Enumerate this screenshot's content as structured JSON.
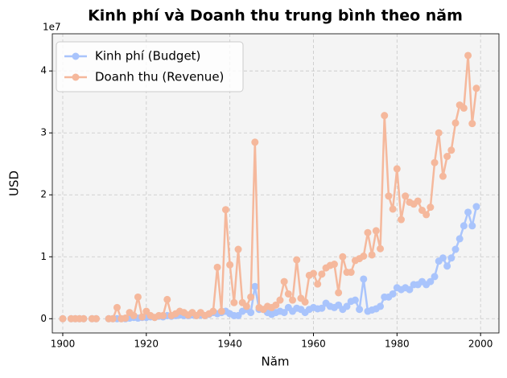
{
  "chart_data": {
    "type": "line",
    "title": "Kinh phí và Doanh thu trung bình theo năm",
    "x_label": "Năm",
    "y_label": "USD",
    "y_offset_label": "1e7",
    "x": [
      1900,
      1901,
      1902,
      1903,
      1904,
      1905,
      1906,
      1907,
      1908,
      1909,
      1910,
      1911,
      1912,
      1913,
      1914,
      1915,
      1916,
      1917,
      1918,
      1919,
      1920,
      1921,
      1922,
      1923,
      1924,
      1925,
      1926,
      1927,
      1928,
      1929,
      1930,
      1931,
      1932,
      1933,
      1934,
      1935,
      1936,
      1937,
      1938,
      1939,
      1940,
      1941,
      1942,
      1943,
      1944,
      1945,
      1946,
      1947,
      1948,
      1949,
      1950,
      1951,
      1952,
      1953,
      1954,
      1955,
      1956,
      1957,
      1958,
      1959,
      1960,
      1961,
      1962,
      1963,
      1964,
      1965,
      1966,
      1967,
      1968,
      1969,
      1970,
      1971,
      1972,
      1973,
      1974,
      1975,
      1976,
      1977,
      1978,
      1979,
      1980,
      1981,
      1982,
      1983,
      1984,
      1985,
      1986,
      1987,
      1988,
      1989,
      1990,
      1991,
      1992,
      1993,
      1994,
      1995,
      1996,
      1997,
      1998,
      1999
    ],
    "series": [
      {
        "name": "Kinh phí (Budget)",
        "color": "#a9c4fc",
        "values": [
          0,
          null,
          0,
          0,
          0,
          0,
          null,
          0,
          0,
          null,
          null,
          0,
          0,
          0,
          0,
          0,
          0.01,
          0.02,
          0.01,
          0.02,
          0.02,
          0.03,
          0.02,
          0.04,
          0.03,
          0.05,
          0.04,
          0.05,
          0.06,
          0.05,
          0.05,
          0.06,
          0.05,
          0.06,
          0.05,
          0.07,
          0.1,
          0.08,
          0.1,
          0.12,
          0.08,
          0.05,
          0.05,
          0.12,
          0.15,
          0.1,
          0.52,
          0.15,
          0.15,
          0.1,
          0.07,
          0.1,
          0.12,
          0.1,
          0.18,
          0.12,
          0.17,
          0.15,
          0.1,
          0.15,
          0.18,
          0.16,
          0.17,
          0.25,
          0.2,
          0.18,
          0.22,
          0.15,
          0.2,
          0.28,
          0.3,
          0.15,
          0.64,
          0.12,
          0.14,
          0.16,
          0.2,
          0.35,
          0.35,
          0.4,
          0.5,
          0.47,
          0.5,
          0.47,
          0.55,
          0.55,
          0.6,
          0.55,
          0.6,
          0.68,
          0.93,
          0.98,
          0.85,
          0.98,
          1.12,
          1.29,
          1.5,
          1.72,
          1.5,
          1.81
        ]
      },
      {
        "name": "Doanh thu (Revenue)",
        "color": "#f5b89c",
        "values": [
          0,
          null,
          0,
          0,
          0,
          0,
          null,
          0,
          0,
          null,
          null,
          0,
          0,
          0.18,
          0,
          0.01,
          0.1,
          0.05,
          0.35,
          0.03,
          0.12,
          0.05,
          0.02,
          0.05,
          0.05,
          0.31,
          0.05,
          0.08,
          0.12,
          0.1,
          0.06,
          0.1,
          0.05,
          0.1,
          0.05,
          0.08,
          0.12,
          0.83,
          0.12,
          1.76,
          0.87,
          0.26,
          1.12,
          0.26,
          0.2,
          0.35,
          2.85,
          0.18,
          0.15,
          0.2,
          0.18,
          0.22,
          0.3,
          0.6,
          0.4,
          0.3,
          0.95,
          0.33,
          0.27,
          0.7,
          0.73,
          0.56,
          0.72,
          0.82,
          0.86,
          0.88,
          0.42,
          1.0,
          0.75,
          0.75,
          0.94,
          0.97,
          1.01,
          1.39,
          1.03,
          1.42,
          1.13,
          3.28,
          1.98,
          1.77,
          2.42,
          1.6,
          1.98,
          1.88,
          1.85,
          1.9,
          1.75,
          1.68,
          1.8,
          2.52,
          3.0,
          2.3,
          2.62,
          2.72,
          3.16,
          3.45,
          3.4,
          4.25,
          3.15,
          3.72
        ]
      }
    ],
    "xlim": [
      1897.5,
      2004.4
    ],
    "xticks": [
      1900,
      1920,
      1940,
      1960,
      1980,
      2000
    ],
    "ylim": [
      -0.23,
      4.6
    ],
    "yticks": [
      0,
      1,
      2,
      3,
      4
    ],
    "grid": true,
    "legend": "upper-left"
  }
}
